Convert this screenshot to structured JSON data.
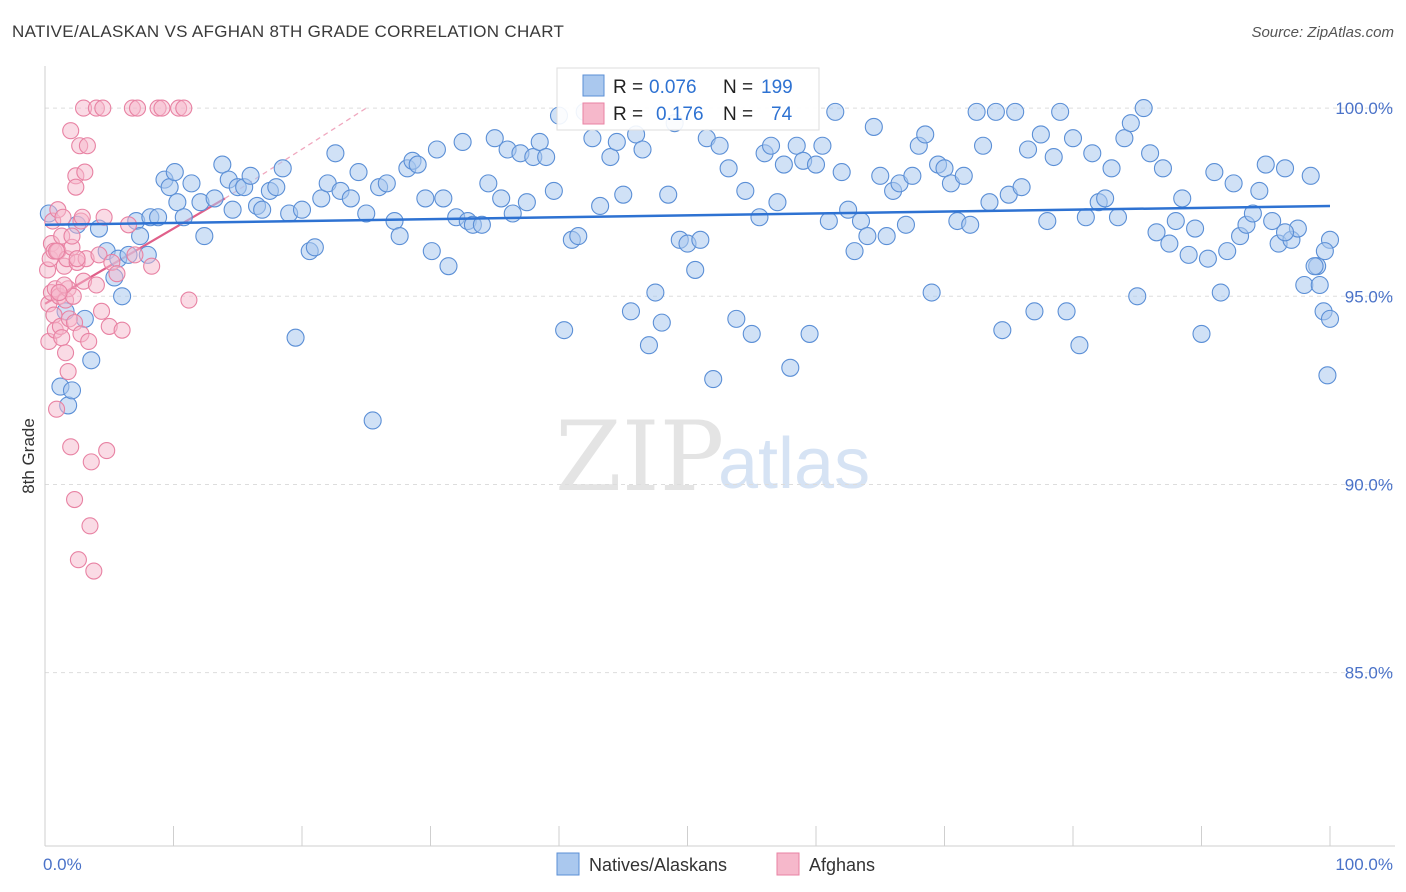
{
  "title": "NATIVE/ALASKAN VS AFGHAN 8TH GRADE CORRELATION CHART",
  "source": "Source: ZipAtlas.com",
  "watermark": {
    "zip": "ZIP",
    "atlas": "atlas"
  },
  "legend_top": {
    "rows": [
      {
        "r_label": "R =",
        "r_value": "0.076",
        "n_label": "N =",
        "n_value": "199"
      },
      {
        "r_label": "R =",
        "r_value": "0.176",
        "n_label": "N =",
        "n_value": "74"
      }
    ]
  },
  "legend_bottom": {
    "items": [
      "Natives/Alaskans",
      "Afghans"
    ]
  },
  "colors": {
    "blue_fill": "#aac8ee",
    "blue_stroke": "#5b8fd6",
    "blue_line": "#2e72d2",
    "pink_fill": "#f6b8cb",
    "pink_stroke": "#e882a3",
    "pink_line": "#e0608a",
    "grid": "#dddddd",
    "label": "#4a72c8"
  },
  "chart_data": {
    "type": "scatter",
    "title": "NATIVE/ALASKAN VS AFGHAN 8TH GRADE CORRELATION CHART",
    "xlabel": "",
    "ylabel": "8th Grade",
    "xlim": [
      0,
      100
    ],
    "ylim": [
      80.5,
      100.8
    ],
    "x_tick_labels": [
      "0.0%",
      "100.0%"
    ],
    "y_ticks": [
      85,
      90,
      95,
      100
    ],
    "y_tick_labels": [
      "85.0%",
      "90.0%",
      "95.0%",
      "100.0%"
    ],
    "series": [
      {
        "name": "Natives/Alaskans",
        "r": 0.076,
        "n": 199,
        "trend": {
          "x": [
            0,
            100
          ],
          "y": [
            96.9,
            97.4
          ]
        },
        "points": [
          [
            0.3,
            97.2
          ],
          [
            1.2,
            92.6
          ],
          [
            1.6,
            94.6
          ],
          [
            1.8,
            92.1
          ],
          [
            2.1,
            92.5
          ],
          [
            2.5,
            96.9
          ],
          [
            3.1,
            94.4
          ],
          [
            3.6,
            93.3
          ],
          [
            4.2,
            96.8
          ],
          [
            4.8,
            96.2
          ],
          [
            5.4,
            95.5
          ],
          [
            5.7,
            96.0
          ],
          [
            6.0,
            95.0
          ],
          [
            6.5,
            96.1
          ],
          [
            7.1,
            97.0
          ],
          [
            7.4,
            96.6
          ],
          [
            8.0,
            96.1
          ],
          [
            8.2,
            97.1
          ],
          [
            8.8,
            97.1
          ],
          [
            9.3,
            98.1
          ],
          [
            9.7,
            97.9
          ],
          [
            10.1,
            98.3
          ],
          [
            10.3,
            97.5
          ],
          [
            10.8,
            97.1
          ],
          [
            11.4,
            98.0
          ],
          [
            12.1,
            97.5
          ],
          [
            12.4,
            96.6
          ],
          [
            13.2,
            97.6
          ],
          [
            13.8,
            98.5
          ],
          [
            14.3,
            98.1
          ],
          [
            14.6,
            97.3
          ],
          [
            15.0,
            97.9
          ],
          [
            15.5,
            97.9
          ],
          [
            16.0,
            98.2
          ],
          [
            16.5,
            97.4
          ],
          [
            16.9,
            97.3
          ],
          [
            17.5,
            97.8
          ],
          [
            18.0,
            97.9
          ],
          [
            18.5,
            98.4
          ],
          [
            19.0,
            97.2
          ],
          [
            19.5,
            93.9
          ],
          [
            20.0,
            97.3
          ],
          [
            20.6,
            96.2
          ],
          [
            21.0,
            96.3
          ],
          [
            21.5,
            97.6
          ],
          [
            22.0,
            98.0
          ],
          [
            22.6,
            98.8
          ],
          [
            23.0,
            97.8
          ],
          [
            23.8,
            97.6
          ],
          [
            24.4,
            98.3
          ],
          [
            25.0,
            97.2
          ],
          [
            25.5,
            91.7
          ],
          [
            26.0,
            97.9
          ],
          [
            26.6,
            98.0
          ],
          [
            27.2,
            97.0
          ],
          [
            27.6,
            96.6
          ],
          [
            28.2,
            98.4
          ],
          [
            28.6,
            98.6
          ],
          [
            29.0,
            98.5
          ],
          [
            29.6,
            97.6
          ],
          [
            30.1,
            96.2
          ],
          [
            30.5,
            98.9
          ],
          [
            31.0,
            97.6
          ],
          [
            31.4,
            95.8
          ],
          [
            32.0,
            97.1
          ],
          [
            32.5,
            99.1
          ],
          [
            32.9,
            97.0
          ],
          [
            33.3,
            96.9
          ],
          [
            34.0,
            96.9
          ],
          [
            34.5,
            98.0
          ],
          [
            35.0,
            99.2
          ],
          [
            35.5,
            97.6
          ],
          [
            36.0,
            98.9
          ],
          [
            36.4,
            97.2
          ],
          [
            37.0,
            98.8
          ],
          [
            37.5,
            97.5
          ],
          [
            38.0,
            98.7
          ],
          [
            38.5,
            99.1
          ],
          [
            39.0,
            98.7
          ],
          [
            39.6,
            97.8
          ],
          [
            40.0,
            99.8
          ],
          [
            40.4,
            94.1
          ],
          [
            41.0,
            96.5
          ],
          [
            41.5,
            96.6
          ],
          [
            42.0,
            99.9
          ],
          [
            42.6,
            99.2
          ],
          [
            43.2,
            97.4
          ],
          [
            44.0,
            98.7
          ],
          [
            44.5,
            99.1
          ],
          [
            45.0,
            97.7
          ],
          [
            45.6,
            94.6
          ],
          [
            46.0,
            99.3
          ],
          [
            46.5,
            98.9
          ],
          [
            47.0,
            93.7
          ],
          [
            47.5,
            95.1
          ],
          [
            48.0,
            94.3
          ],
          [
            48.5,
            97.7
          ],
          [
            49.0,
            99.6
          ],
          [
            49.4,
            96.5
          ],
          [
            50.0,
            96.4
          ],
          [
            50.6,
            95.7
          ],
          [
            51.0,
            96.5
          ],
          [
            51.5,
            99.2
          ],
          [
            52.0,
            92.8
          ],
          [
            52.5,
            99.0
          ],
          [
            53.2,
            98.4
          ],
          [
            53.8,
            94.4
          ],
          [
            54.5,
            97.8
          ],
          [
            55.0,
            94.0
          ],
          [
            55.6,
            97.1
          ],
          [
            56.0,
            98.8
          ],
          [
            56.5,
            99.0
          ],
          [
            57.0,
            97.5
          ],
          [
            57.5,
            98.5
          ],
          [
            58.0,
            93.1
          ],
          [
            58.5,
            99.0
          ],
          [
            59.0,
            98.6
          ],
          [
            59.5,
            94.0
          ],
          [
            60.0,
            98.5
          ],
          [
            60.5,
            99.0
          ],
          [
            61.0,
            97.0
          ],
          [
            61.5,
            99.9
          ],
          [
            62.0,
            98.3
          ],
          [
            62.5,
            97.3
          ],
          [
            63.0,
            96.2
          ],
          [
            63.5,
            97.0
          ],
          [
            64.0,
            96.6
          ],
          [
            64.5,
            99.5
          ],
          [
            65.0,
            98.2
          ],
          [
            65.5,
            96.6
          ],
          [
            66.0,
            97.8
          ],
          [
            66.5,
            98.0
          ],
          [
            67.0,
            96.9
          ],
          [
            67.5,
            98.2
          ],
          [
            68.0,
            99.0
          ],
          [
            68.5,
            99.3
          ],
          [
            69.0,
            95.1
          ],
          [
            69.5,
            98.5
          ],
          [
            70.0,
            98.4
          ],
          [
            70.5,
            98.0
          ],
          [
            71.0,
            97.0
          ],
          [
            71.5,
            98.2
          ],
          [
            72.0,
            96.9
          ],
          [
            72.5,
            99.9
          ],
          [
            73.0,
            99.0
          ],
          [
            73.5,
            97.5
          ],
          [
            74.0,
            99.9
          ],
          [
            74.5,
            94.1
          ],
          [
            75.0,
            97.7
          ],
          [
            75.5,
            99.9
          ],
          [
            76.0,
            97.9
          ],
          [
            76.5,
            98.9
          ],
          [
            77.0,
            94.6
          ],
          [
            77.5,
            99.3
          ],
          [
            78.0,
            97.0
          ],
          [
            78.5,
            98.7
          ],
          [
            79.0,
            99.9
          ],
          [
            79.5,
            94.6
          ],
          [
            80.0,
            99.2
          ],
          [
            80.5,
            93.7
          ],
          [
            81.0,
            97.1
          ],
          [
            81.5,
            98.8
          ],
          [
            82.0,
            97.5
          ],
          [
            82.5,
            97.6
          ],
          [
            83.0,
            98.4
          ],
          [
            83.5,
            97.1
          ],
          [
            84.0,
            99.2
          ],
          [
            84.5,
            99.6
          ],
          [
            85.0,
            95.0
          ],
          [
            85.5,
            100.0
          ],
          [
            86.0,
            98.8
          ],
          [
            86.5,
            96.7
          ],
          [
            87.0,
            98.4
          ],
          [
            87.5,
            96.4
          ],
          [
            88.0,
            97.0
          ],
          [
            88.5,
            97.6
          ],
          [
            89.0,
            96.1
          ],
          [
            89.5,
            96.8
          ],
          [
            90.0,
            94.0
          ],
          [
            90.5,
            96.0
          ],
          [
            91.0,
            98.3
          ],
          [
            91.5,
            95.1
          ],
          [
            92.0,
            96.2
          ],
          [
            92.5,
            98.0
          ],
          [
            93.0,
            96.6
          ],
          [
            93.5,
            96.9
          ],
          [
            94.0,
            97.2
          ],
          [
            94.5,
            97.8
          ],
          [
            95.0,
            98.5
          ],
          [
            95.5,
            97.0
          ],
          [
            96.0,
            96.4
          ],
          [
            96.5,
            98.4
          ],
          [
            97.0,
            96.5
          ],
          [
            97.5,
            96.8
          ],
          [
            98.0,
            95.3
          ],
          [
            98.5,
            98.2
          ],
          [
            99.0,
            95.8
          ],
          [
            99.5,
            94.6
          ],
          [
            100.0,
            96.5
          ],
          [
            96.5,
            96.7
          ],
          [
            98.8,
            95.8
          ],
          [
            99.2,
            95.3
          ],
          [
            99.6,
            96.2
          ],
          [
            100.0,
            94.4
          ],
          [
            99.8,
            92.9
          ]
        ]
      },
      {
        "name": "Afghans",
        "r": 0.176,
        "n": 74,
        "trend": {
          "x": [
            0,
            14
          ],
          "y": [
            94.8,
            97.6
          ]
        },
        "trend_extended": {
          "x": [
            14,
            25
          ],
          "y": [
            97.6,
            100.0
          ]
        },
        "points": [
          [
            0.2,
            95.7
          ],
          [
            0.3,
            94.8
          ],
          [
            0.3,
            93.8
          ],
          [
            0.4,
            96.0
          ],
          [
            0.5,
            95.1
          ],
          [
            0.5,
            96.4
          ],
          [
            0.6,
            97.0
          ],
          [
            0.7,
            96.2
          ],
          [
            0.7,
            94.5
          ],
          [
            0.8,
            95.2
          ],
          [
            0.8,
            94.1
          ],
          [
            0.9,
            92.0
          ],
          [
            1.0,
            97.3
          ],
          [
            1.0,
            96.2
          ],
          [
            1.1,
            95.0
          ],
          [
            1.2,
            94.2
          ],
          [
            1.3,
            93.9
          ],
          [
            1.3,
            96.6
          ],
          [
            1.4,
            97.1
          ],
          [
            1.5,
            95.8
          ],
          [
            1.6,
            94.9
          ],
          [
            1.6,
            93.5
          ],
          [
            1.7,
            96.0
          ],
          [
            1.8,
            93.0
          ],
          [
            1.8,
            95.2
          ],
          [
            1.9,
            94.4
          ],
          [
            2.0,
            99.4
          ],
          [
            2.0,
            91.0
          ],
          [
            2.1,
            96.3
          ],
          [
            2.2,
            95.0
          ],
          [
            2.3,
            94.3
          ],
          [
            2.3,
            89.6
          ],
          [
            2.4,
            98.2
          ],
          [
            2.4,
            97.9
          ],
          [
            2.5,
            95.9
          ],
          [
            2.6,
            88.0
          ],
          [
            2.7,
            99.0
          ],
          [
            2.8,
            97.0
          ],
          [
            2.8,
            94.0
          ],
          [
            2.9,
            97.1
          ],
          [
            3.0,
            95.4
          ],
          [
            3.1,
            98.3
          ],
          [
            3.2,
            96.0
          ],
          [
            3.3,
            99.0
          ],
          [
            3.4,
            93.8
          ],
          [
            3.5,
            88.9
          ],
          [
            3.6,
            90.6
          ],
          [
            3.8,
            87.7
          ],
          [
            4.0,
            95.3
          ],
          [
            4.2,
            96.1
          ],
          [
            4.4,
            94.6
          ],
          [
            4.6,
            97.1
          ],
          [
            4.8,
            90.9
          ],
          [
            5.0,
            94.2
          ],
          [
            5.2,
            95.9
          ],
          [
            5.6,
            95.6
          ],
          [
            6.0,
            94.1
          ],
          [
            3.0,
            100.0
          ],
          [
            4.0,
            100.0
          ],
          [
            4.5,
            100.0
          ],
          [
            6.8,
            100.0
          ],
          [
            7.2,
            100.0
          ],
          [
            8.8,
            100.0
          ],
          [
            9.1,
            100.0
          ],
          [
            10.4,
            100.0
          ],
          [
            10.8,
            100.0
          ],
          [
            11.2,
            94.9
          ],
          [
            6.5,
            96.9
          ],
          [
            7.0,
            96.1
          ],
          [
            8.3,
            95.8
          ],
          [
            2.1,
            96.6
          ],
          [
            1.5,
            95.3
          ],
          [
            2.5,
            96.0
          ],
          [
            0.9,
            96.2
          ],
          [
            1.1,
            95.1
          ]
        ]
      }
    ]
  }
}
